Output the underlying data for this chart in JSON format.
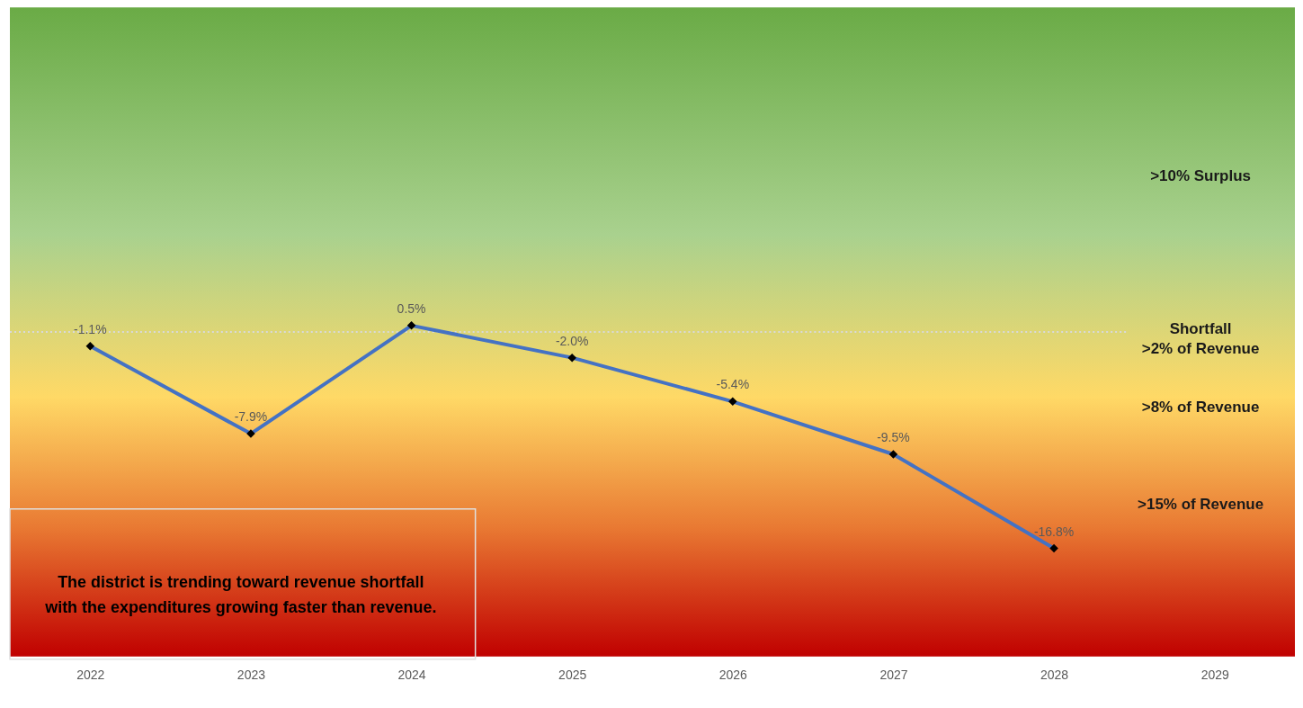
{
  "chart_data": {
    "type": "line",
    "categories": [
      "2022",
      "2023",
      "2024",
      "2025",
      "2026",
      "2027",
      "2028",
      "2029"
    ],
    "series": [
      {
        "color": "#4472c4",
        "values": [
          -1.1,
          -7.9,
          0.5,
          -2.0,
          -5.4,
          -9.5,
          -16.8,
          null
        ],
        "value_labels": [
          "-1.1%",
          "-7.9%",
          "0.5%",
          "-2.0%",
          "-5.4%",
          "-9.5%",
          "-16.8%",
          null
        ]
      }
    ],
    "marker": "diamond",
    "ref_lines": [
      {
        "axis": "y",
        "value": 0,
        "color": "#d9d9d9",
        "line_style": "dotted"
      }
    ],
    "annotations": [
      ">10% Surplus",
      "Shortfall >2% of Revenue",
      ">8% of Revenue",
      ">15% of Revenue",
      "The district is trending toward revenue shortfall with the expenditures growing faster than revenue."
    ],
    "grid": false,
    "legend": false
  }
}
